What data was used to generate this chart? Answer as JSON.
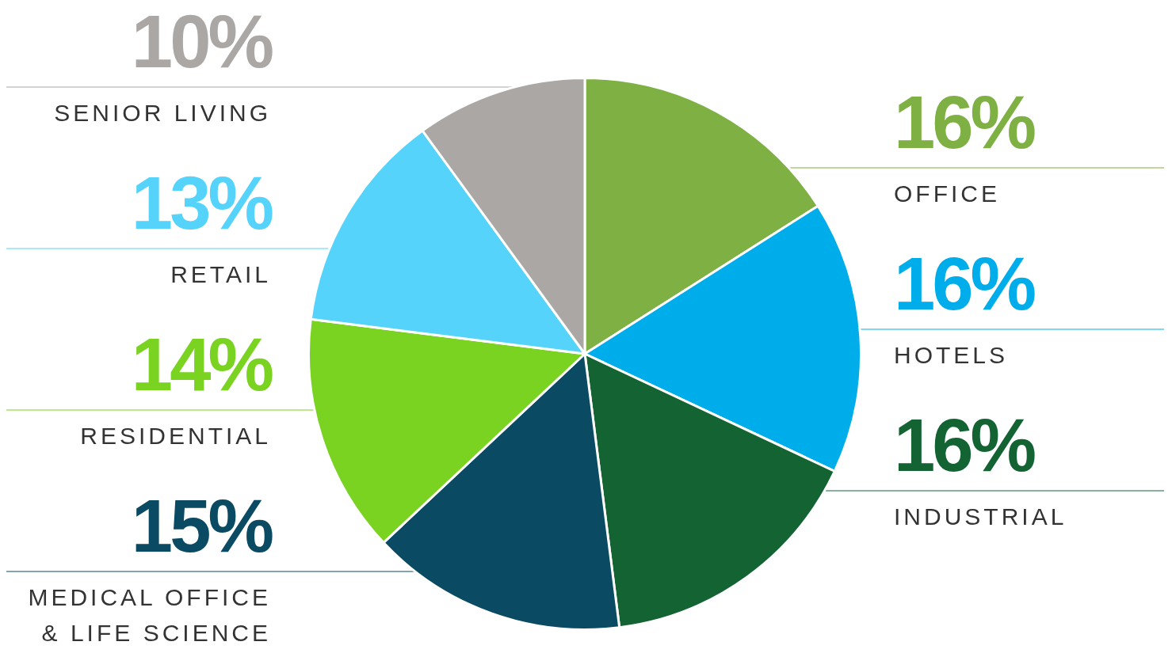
{
  "chart_data": {
    "type": "pie",
    "categories": [
      "OFFICE",
      "HOTELS",
      "INDUSTRIAL",
      "MEDICAL OFFICE & LIFE SCIENCE",
      "RESIDENTIAL",
      "RETAIL",
      "SENIOR LIVING"
    ],
    "values": [
      16,
      16,
      16,
      15,
      14,
      13,
      10
    ],
    "colors": [
      "#7eb043",
      "#00adeb",
      "#146333",
      "#0a4a63",
      "#7ad321",
      "#55d3fb",
      "#aaa7a5"
    ],
    "value_labels": [
      "16%",
      "16%",
      "16%",
      "15%",
      "14%",
      "13%",
      "10%"
    ],
    "legend": false
  }
}
